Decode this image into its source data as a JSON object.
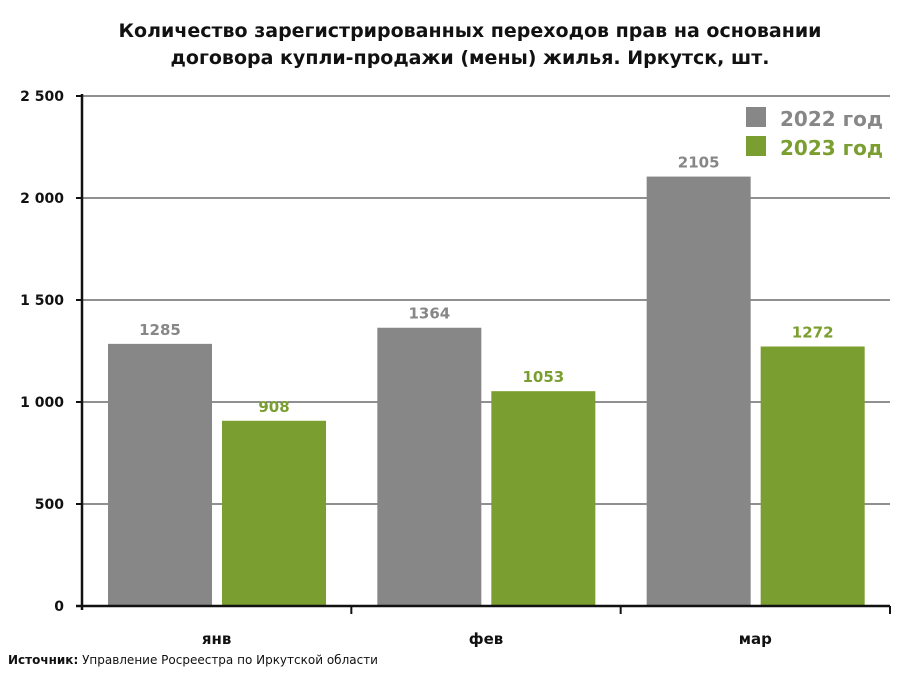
{
  "chart_data": {
    "type": "bar",
    "title": [
      "Количество зарегистрированных переходов прав на основании",
      "договора купли-продажи (мены) жилья. Иркутск, шт."
    ],
    "categories": [
      "янв",
      "фев",
      "мар"
    ],
    "series": [
      {
        "name": "2022 год",
        "color": "#878787",
        "values": [
          1285,
          1364,
          2105
        ]
      },
      {
        "name": "2023 год",
        "color": "#7a9e2f",
        "values": [
          908,
          1053,
          1272
        ]
      }
    ],
    "ylim": [
      0,
      2500
    ],
    "yticks": [
      0,
      500,
      1000,
      1500,
      2000,
      2500
    ],
    "ytick_labels": [
      "0",
      "500",
      "1 000",
      "1 500",
      "2 000",
      "2 500"
    ],
    "grid": true,
    "legend": "top-right",
    "xlabel": "",
    "ylabel": ""
  },
  "source": {
    "label": "Источник:",
    "text": " Управление Росреестра по Иркутской области"
  }
}
